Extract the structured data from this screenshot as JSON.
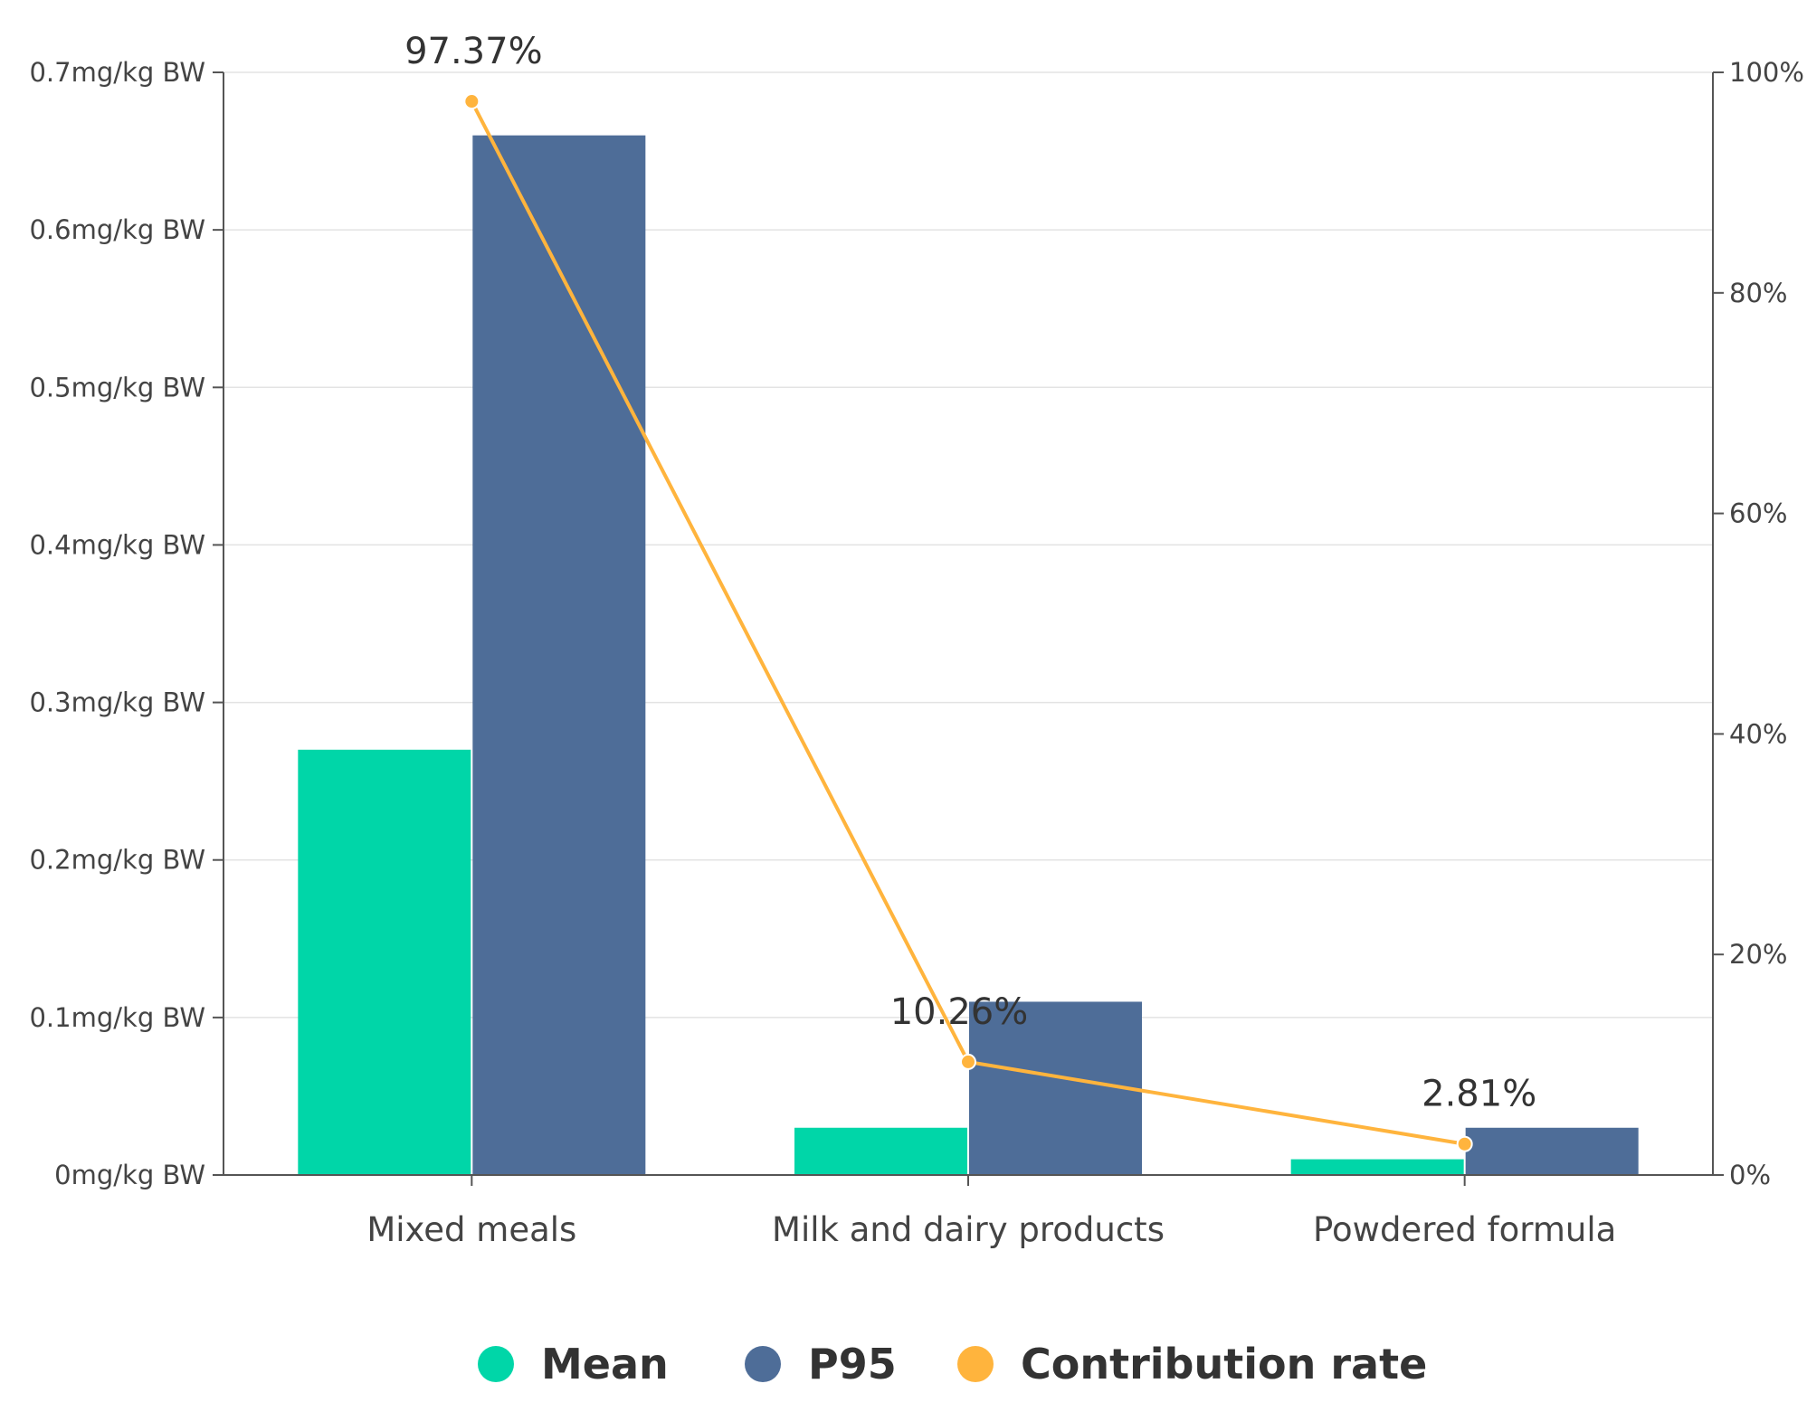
{
  "chart_data": {
    "type": "bar+line",
    "title": "",
    "xlabel": "",
    "ylabel": "",
    "ylabel_right": "",
    "categories": [
      "Mixed meals",
      "Milk and dairy products",
      "Powdered formula"
    ],
    "series": [
      {
        "name": "Mean",
        "type": "bar",
        "axis": "left",
        "color": "#00D6A8",
        "values": [
          0.27,
          0.03,
          0.01
        ]
      },
      {
        "name": "P95",
        "type": "bar",
        "axis": "left",
        "color": "#4E6D98",
        "values": [
          0.66,
          0.11,
          0.03
        ]
      },
      {
        "name": "Contribution rate",
        "type": "line",
        "axis": "right",
        "color": "#FFB43D",
        "values": [
          97.37,
          10.26,
          2.81
        ],
        "labels": [
          "97.37%",
          "10.26%",
          "2.81%"
        ]
      }
    ],
    "ylim": [
      0,
      0.7
    ],
    "yticks": [
      0,
      0.1,
      0.2,
      0.3,
      0.4,
      0.5,
      0.6,
      0.7
    ],
    "ytick_labels": [
      "0mg/kg BW",
      "0.1mg/kg BW",
      "0.2mg/kg BW",
      "0.3mg/kg BW",
      "0.4mg/kg BW",
      "0.5mg/kg BW",
      "0.6mg/kg BW",
      "0.7mg/kg BW"
    ],
    "ylim_right": [
      0,
      100
    ],
    "yticks_right": [
      0,
      20,
      40,
      60,
      80,
      100
    ],
    "ytick_right_labels": [
      "0%",
      "20%",
      "40%",
      "60%",
      "80%",
      "100%"
    ],
    "grid": true,
    "legend_position": "bottom-center",
    "legend": [
      "Mean",
      "P95",
      "Contribution rate"
    ]
  }
}
